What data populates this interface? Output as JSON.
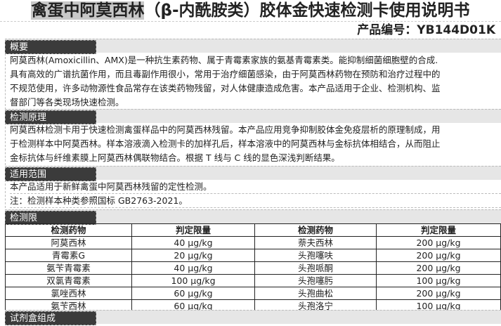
{
  "title_highlight": "禽蛋中阿莫西林",
  "title_rest": "（β-内酰胺类）胶体金快速检测卡使用说明书",
  "product_no": "产品编号：YB144D01K",
  "sections": {
    "overview": {
      "heading": "概要",
      "lines": [
        "阿莫西林(Amoxicillin、AMX)是一种抗生素药物、属于青霉素家族的氨基青霉素类。能抑制细菌细胞壁的合成.",
        "具有高效的广谱抗菌作用，而且毒副作用很小，常用于治疗细菌感染，由于阿莫西林药物在预防和治疗过程中的",
        "不规范使用，许多动物源性食品常存在该类药物残留，对人体健康造成危害。本产品适用于企业、检测机构、监",
        "督部门等各类现场快速检测。"
      ]
    },
    "principle": {
      "heading": "检测原理",
      "lines": [
        "阿莫西林检测卡用于快速检测禽蛋样品中的阿莫西林残留。本产品应用竞争抑制胶体金免疫层析的原理制成，用",
        "于检测样本中阿莫西林。样本溶液滴入检测卡的加样孔后，样本溶液中的阿莫西林与金标抗体相结合，从而阻止",
        "金标抗体与纤维素膜上阿莫西林偶联物结合。根据 T 线与 C 线的显色深浅判断结果。"
      ]
    },
    "scope": {
      "heading": "适用范围",
      "lines": [
        "本产品适用于新鲜禽蛋中阿莫西林残留的定性检测。",
        "注：检测样本种类参照国标 GB2763-2021。"
      ]
    },
    "limits": {
      "heading": "检测限",
      "headers": [
        "检测药物",
        "判定限量",
        "检测药物",
        "判定限量"
      ],
      "rows": [
        [
          "阿莫西林",
          "40 μg/kg",
          "萘夫西林",
          "200 μg/kg"
        ],
        [
          "青霉素G",
          "20 μg/kg",
          "头孢噻呋",
          "200 μg/kg"
        ],
        [
          "氨苄青霉素",
          "40 μg/kg",
          "头孢哌酮",
          "200 μg/kg"
        ],
        [
          "双氯青霉素",
          "100 μg/kg",
          "头孢噻肟",
          "100 μg/kg"
        ],
        [
          "氯唑西林",
          "60 μg/kg",
          "头孢曲松",
          "200 μg/kg"
        ],
        [
          "氨苄西林",
          "60 μg/kg",
          "头孢洛宁",
          "100 μg/kg"
        ]
      ]
    },
    "kit": {
      "heading": "试剂盒组成"
    }
  }
}
